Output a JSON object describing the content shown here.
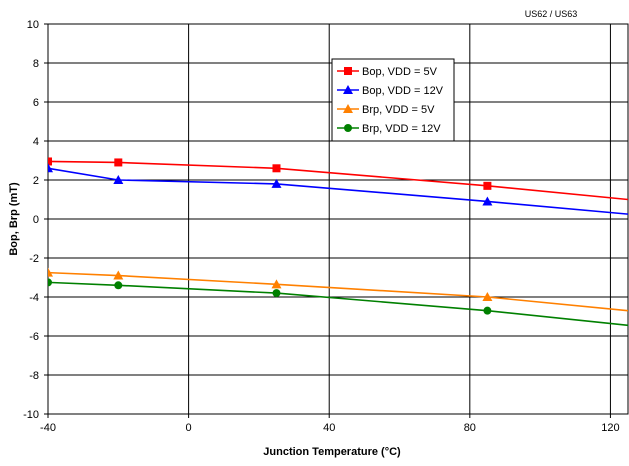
{
  "corner_label": "US62 / US63",
  "chart_data": {
    "type": "line",
    "title": "",
    "xlabel": "Junction Temperature (°C)",
    "ylabel": "Bop, Brp (mT)",
    "xlim": [
      -40,
      125
    ],
    "ylim": [
      -10,
      10
    ],
    "x_ticks": [
      -40,
      0,
      40,
      80,
      120
    ],
    "y_ticks": [
      -10,
      -8,
      -6,
      -4,
      -2,
      0,
      2,
      4,
      6,
      8,
      10
    ],
    "grid": true,
    "legend_position": "top-center",
    "series": [
      {
        "name": "Bop, VDD = 5V",
        "color": "#ff0000",
        "marker": "square",
        "x": [
          -40,
          -20,
          25,
          85,
          125
        ],
        "y": [
          2.95,
          2.9,
          2.6,
          1.7,
          1.0
        ],
        "marker_x": [
          -40,
          -20,
          25,
          85
        ]
      },
      {
        "name": "Bop, VDD = 12V",
        "color": "#0000ff",
        "marker": "triangle",
        "x": [
          -40,
          -20,
          25,
          85,
          125
        ],
        "y": [
          2.6,
          2.0,
          1.8,
          0.9,
          0.25
        ],
        "marker_x": [
          -40,
          -20,
          25,
          85
        ]
      },
      {
        "name": "Brp, VDD = 5V",
        "color": "#ff8000",
        "marker": "triangle",
        "x": [
          -40,
          -20,
          25,
          85,
          125
        ],
        "y": [
          -2.75,
          -2.9,
          -3.35,
          -4.0,
          -4.7
        ],
        "marker_x": [
          -40,
          -20,
          25,
          85
        ]
      },
      {
        "name": "Brp, VDD = 12V",
        "color": "#008000",
        "marker": "circle",
        "x": [
          -40,
          -20,
          25,
          85,
          125
        ],
        "y": [
          -3.25,
          -3.4,
          -3.8,
          -4.7,
          -5.45
        ],
        "marker_x": [
          -40,
          -20,
          25,
          85
        ]
      }
    ]
  }
}
